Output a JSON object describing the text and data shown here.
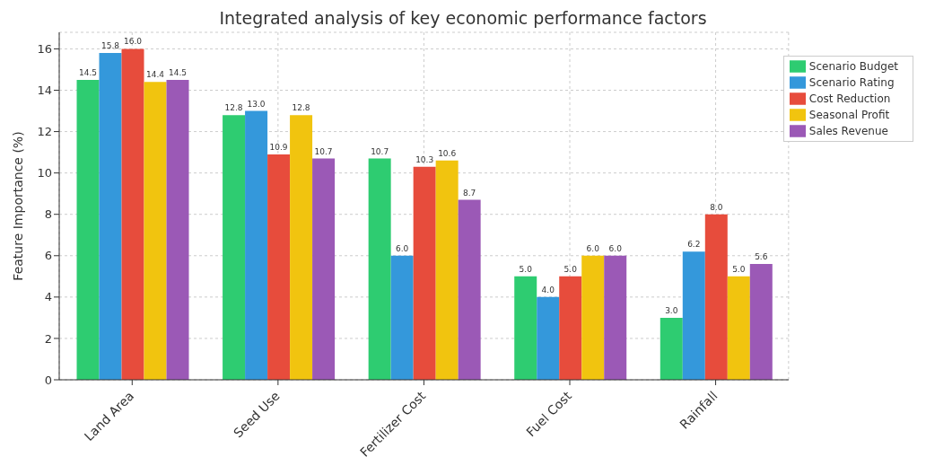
{
  "chart_data": {
    "type": "bar",
    "title": "Integrated analysis of key economic performance factors",
    "ylabel": "Feature Importance (%)",
    "categories": [
      "Land Area",
      "Seed Use",
      "Fertilizer Cost",
      "Fuel Cost",
      "Rainfall"
    ],
    "series": [
      {
        "name": "Scenario Budget",
        "color": "#2ecc71",
        "values": [
          14.5,
          12.8,
          10.7,
          5,
          3
        ],
        "value_labels": [
          "14.5",
          "12.8",
          "10.7",
          "5.0",
          "3.0"
        ]
      },
      {
        "name": "Scenario Rating",
        "color": "#3498db",
        "values": [
          15.8,
          13,
          6,
          4,
          6.2
        ],
        "value_labels": [
          "15.8",
          "13.0",
          "6.0",
          "4.0",
          "6.2"
        ]
      },
      {
        "name": "Cost Reduction",
        "color": "#e74c3c",
        "values": [
          16,
          10.9,
          10.3,
          5,
          8
        ],
        "value_labels": [
          "16.0",
          "10.9",
          "10.3",
          "5.0",
          "8.0"
        ]
      },
      {
        "name": "Seasonal Profit",
        "color": "#f1c40f",
        "values": [
          14.4,
          12.8,
          10.6,
          6,
          5
        ],
        "value_labels": [
          "14.4",
          "12.8",
          "10.6",
          "6.0",
          "5.0"
        ]
      },
      {
        "name": "Sales Revenue",
        "color": "#9b59b6",
        "values": [
          14.5,
          10.7,
          8.7,
          6,
          5.6
        ],
        "value_labels": [
          "14.5",
          "10.7",
          "8.7",
          "6.0",
          "5.6"
        ]
      }
    ],
    "ylim": [
      0,
      16.8
    ],
    "yticks": [
      0,
      2,
      4,
      6,
      8,
      10,
      12,
      14,
      16
    ],
    "grid": true,
    "legend": "top right"
  }
}
